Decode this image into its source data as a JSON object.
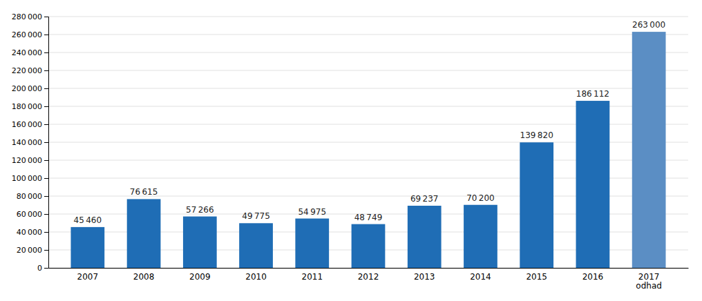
{
  "chart_data": {
    "type": "bar",
    "categories": [
      "2007",
      "2008",
      "2009",
      "2010",
      "2011",
      "2012",
      "2013",
      "2014",
      "2015",
      "2016",
      "2017\nodhad"
    ],
    "values": [
      45460,
      76615,
      57266,
      49775,
      54975,
      48749,
      69237,
      70200,
      139820,
      186112,
      263000
    ],
    "value_labels": [
      "45 460",
      "76 615",
      "57 266",
      "49 775",
      "54 975",
      "48 749",
      "69 237",
      "70 200",
      "139 820",
      "186 112",
      "263 000"
    ],
    "data_labels": true,
    "colors": [
      "#1f6db5",
      "#1f6db5",
      "#1f6db5",
      "#1f6db5",
      "#1f6db5",
      "#1f6db5",
      "#1f6db5",
      "#1f6db5",
      "#1f6db5",
      "#1f6db5",
      "#5b8ec4"
    ],
    "ylim": [
      0,
      280000
    ],
    "yticks": [
      0,
      {
        "value": 20000,
        "label": "20 000"
      },
      {
        "value": 40000,
        "label": "40 000"
      },
      {
        "value": 60000,
        "label": "60 000"
      },
      {
        "value": 80000,
        "label": "80 000"
      },
      {
        "value": 100000,
        "label": "100 000"
      },
      {
        "value": 120000,
        "label": "120 000"
      },
      {
        "value": 140000,
        "label": "140 000"
      },
      {
        "value": 160000,
        "label": "160 000"
      },
      {
        "value": 180000,
        "label": "180 000"
      },
      {
        "value": 200000,
        "label": "200 000"
      },
      {
        "value": 220000,
        "label": "220 000"
      },
      {
        "value": 240000,
        "label": "240 000"
      },
      {
        "value": 260000,
        "label": "260 000"
      },
      {
        "value": 280000,
        "label": "280 000"
      }
    ],
    "grid": true
  }
}
